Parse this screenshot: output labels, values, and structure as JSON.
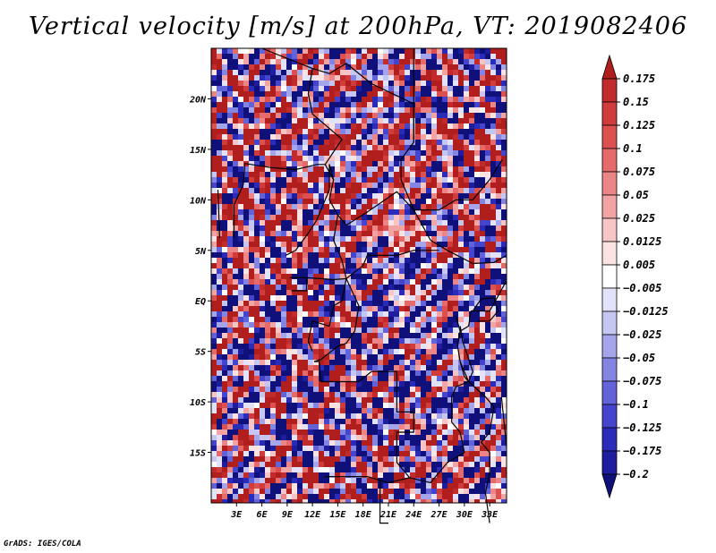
{
  "title": "Vertical velocity [m/s] at 200hPa, VT: 2019082406",
  "footer": "GrADS: IGES/COLA",
  "chart_data": {
    "type": "heatmap",
    "title": "Vertical velocity [m/s] at 200hPa, VT: 2019082406",
    "variable": "Vertical velocity",
    "units": "m/s",
    "level": "200hPa",
    "valid_time": "2019082406",
    "xlim": [
      0,
      35
    ],
    "ylim": [
      -20,
      25
    ],
    "x_ticks": [
      {
        "value": 3,
        "label": "3E"
      },
      {
        "value": 6,
        "label": "6E"
      },
      {
        "value": 9,
        "label": "9E"
      },
      {
        "value": 12,
        "label": "12E"
      },
      {
        "value": 15,
        "label": "15E"
      },
      {
        "value": 18,
        "label": "18E"
      },
      {
        "value": 21,
        "label": "21E"
      },
      {
        "value": 24,
        "label": "24E"
      },
      {
        "value": 27,
        "label": "27E"
      },
      {
        "value": 30,
        "label": "30E"
      },
      {
        "value": 33,
        "label": "33E"
      }
    ],
    "y_ticks": [
      {
        "value": 20,
        "label": "20N"
      },
      {
        "value": 15,
        "label": "15N"
      },
      {
        "value": 10,
        "label": "10N"
      },
      {
        "value": 5,
        "label": "5N"
      },
      {
        "value": 0,
        "label": "EQ"
      },
      {
        "value": -5,
        "label": "5S"
      },
      {
        "value": -10,
        "label": "10S"
      },
      {
        "value": -15,
        "label": "15S"
      }
    ],
    "colorbar": {
      "labels": [
        "0.175",
        "0.15",
        "0.125",
        "0.1",
        "0.075",
        "0.05",
        "0.025",
        "0.0125",
        "0.005",
        "-0.005",
        "-0.0125",
        "-0.025",
        "-0.05",
        "-0.075",
        "-0.1",
        "-0.125",
        "-0.175",
        "-0.2"
      ],
      "colors": [
        "#b01e1e",
        "#c12b2b",
        "#d03b3b",
        "#dc5050",
        "#e56a6a",
        "#ec8686",
        "#f2a3a3",
        "#f7c5c5",
        "#fbe3e3",
        "#ffffff",
        "#e2e2fa",
        "#c6c6f3",
        "#a5a5ec",
        "#8484e3",
        "#6262d9",
        "#4444cc",
        "#2b2bb9",
        "#1d1d9e",
        "#10107a"
      ]
    }
  }
}
